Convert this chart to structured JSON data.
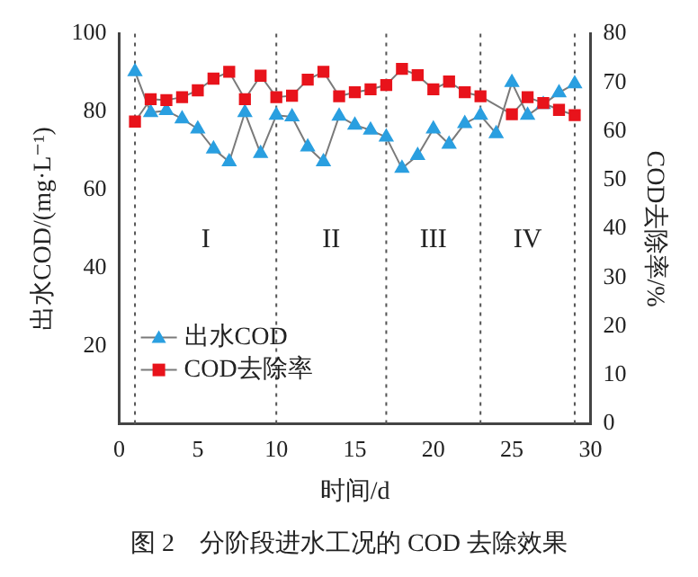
{
  "chart_data": {
    "type": "line",
    "title": "图 2　分阶段进水工况的 COD 去除效果",
    "xlabel": "时间/d",
    "ylabel": "出水COD/(mg·L⁻¹)",
    "y2label": "COD去除率/%",
    "xlim": [
      0,
      30
    ],
    "xticks": [
      0,
      5,
      10,
      15,
      20,
      25,
      30
    ],
    "ylim": [
      0,
      100
    ],
    "yticks": [
      20,
      40,
      60,
      80,
      100
    ],
    "y2lim": [
      0,
      80
    ],
    "y2ticks": [
      0,
      10,
      20,
      30,
      40,
      50,
      60,
      70,
      80
    ],
    "grid": false,
    "legend": "bottom left",
    "line_style": "solid",
    "series": [
      {
        "name": "出水COD",
        "color": "#2a9fe0",
        "marker": "triangle",
        "x": [
          1,
          2,
          3,
          4,
          5,
          6,
          7,
          8,
          9,
          10,
          11,
          12,
          13,
          14,
          15,
          16,
          17,
          18,
          19,
          20,
          21,
          22,
          23,
          24,
          25,
          26,
          27,
          28,
          29
        ],
        "values": [
          90.3,
          79.8,
          80.3,
          78.2,
          75.6,
          70.5,
          67.2,
          79.8,
          69.3,
          79.1,
          78.7,
          71,
          67.2,
          78.9,
          76.6,
          75.3,
          73.5,
          65.5,
          68.8,
          75.6,
          71.7,
          77,
          79.1,
          74.4,
          87.5,
          79.1,
          81.9,
          84.9,
          87.2
        ]
      },
      {
        "name": "COD去除率",
        "color": "#e8131b",
        "marker": "square",
        "axis": "y2",
        "x": [
          1,
          2,
          3,
          4,
          5,
          6,
          7,
          8,
          9,
          10,
          11,
          12,
          13,
          14,
          15,
          16,
          17,
          18,
          19,
          20,
          21,
          22,
          23,
          25,
          26,
          27,
          28,
          29
        ],
        "values": [
          62,
          66.6,
          66.4,
          67,
          68.4,
          70.8,
          72.2,
          66.6,
          71.4,
          67,
          67.3,
          70.6,
          72.2,
          67.2,
          68,
          68.6,
          69.5,
          72.8,
          71.5,
          68.6,
          70.2,
          68,
          67.2,
          63.5,
          67,
          65.8,
          64.4,
          63.3
        ]
      }
    ],
    "ref_lines": [
      {
        "axis": "x",
        "value": 1,
        "color": "#555555",
        "line_style": "dotted"
      },
      {
        "axis": "x",
        "value": 10,
        "color": "#555555",
        "line_style": "dotted"
      },
      {
        "axis": "x",
        "value": 17,
        "color": "#555555",
        "line_style": "dotted"
      },
      {
        "axis": "x",
        "value": 23,
        "color": "#555555",
        "line_style": "dotted"
      },
      {
        "axis": "x",
        "value": 29,
        "color": "#555555",
        "line_style": "dotted"
      }
    ],
    "annotations": [
      "I",
      "II",
      "III",
      "IV"
    ]
  }
}
